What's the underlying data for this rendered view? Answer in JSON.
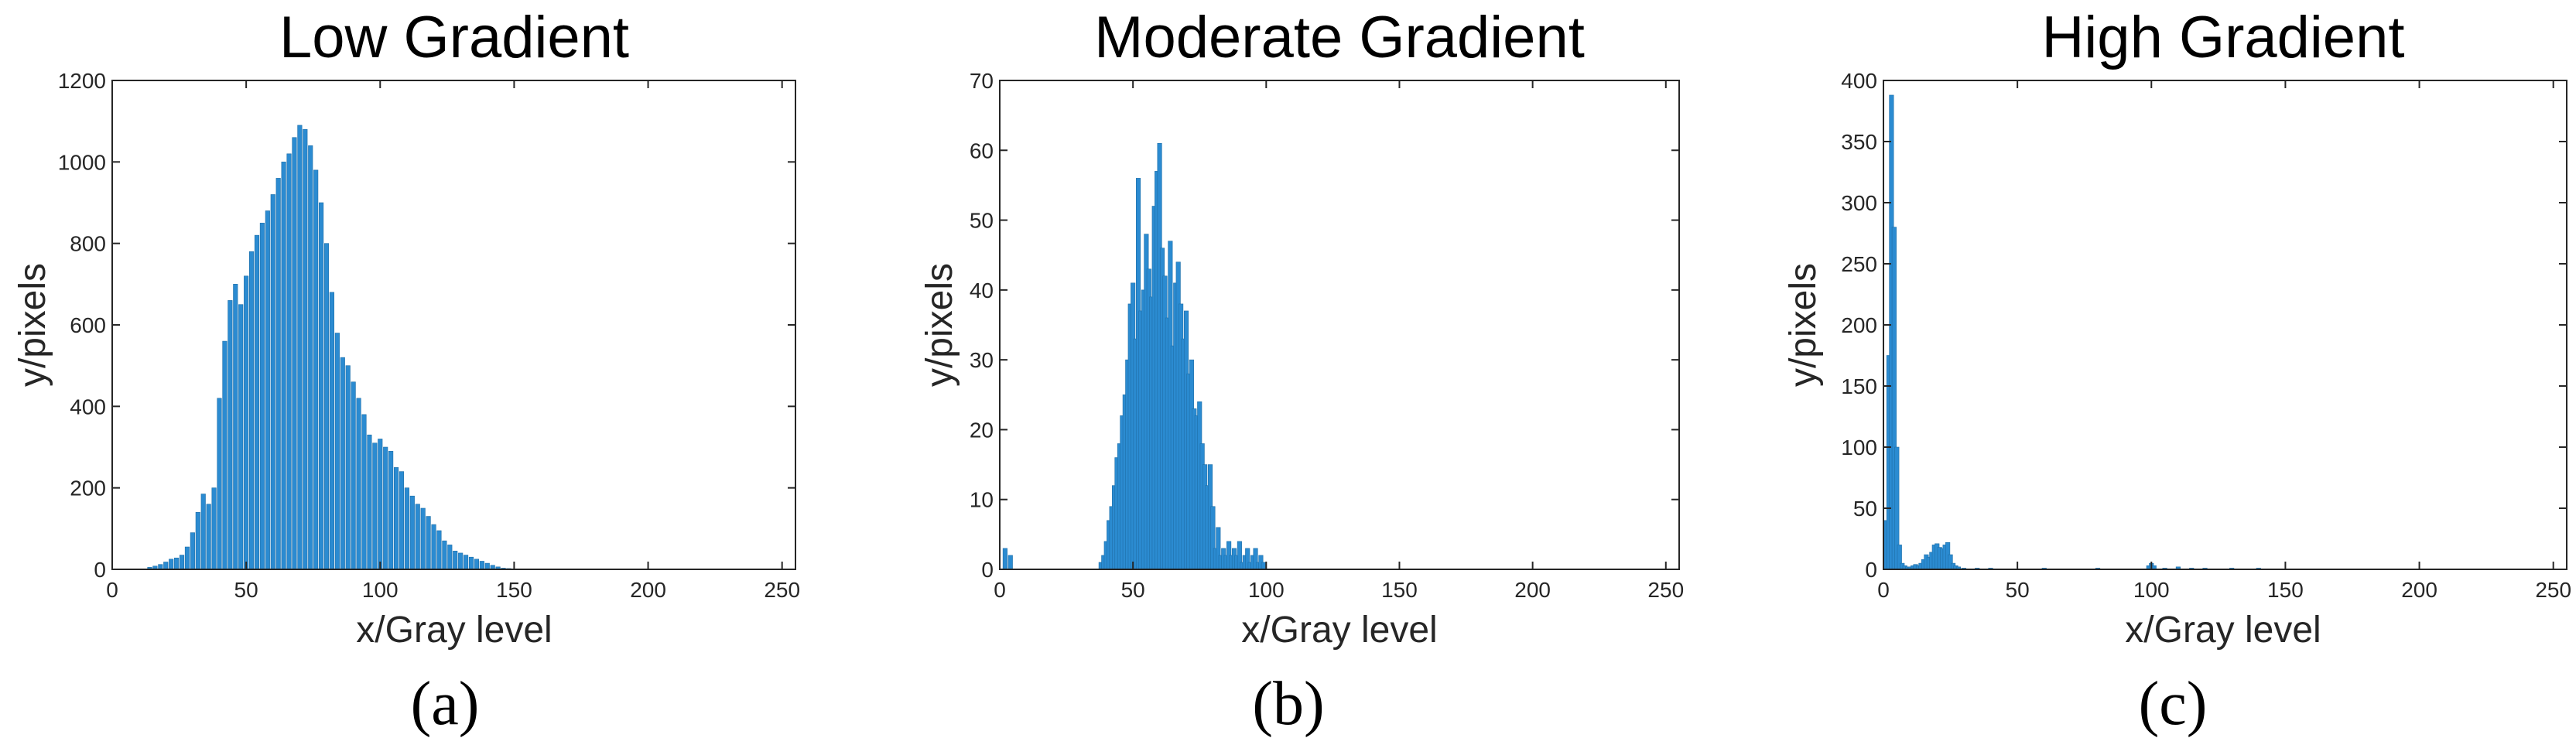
{
  "chart_data": [
    {
      "type": "bar",
      "title": "Low Gradient",
      "xlabel": "x/Gray level",
      "ylabel": "y/pixels",
      "caption": "(a)",
      "xlim": [
        0,
        255
      ],
      "ylim": [
        0,
        1200
      ],
      "xticks": [
        0,
        50,
        100,
        150,
        200,
        250
      ],
      "yticks": [
        0,
        200,
        400,
        600,
        800,
        1000,
        1200
      ],
      "bar_color": "#2b8bd1",
      "x": [
        14,
        16,
        18,
        20,
        22,
        24,
        26,
        28,
        30,
        32,
        34,
        36,
        38,
        40,
        42,
        44,
        46,
        48,
        50,
        52,
        54,
        56,
        58,
        60,
        62,
        64,
        66,
        68,
        70,
        72,
        74,
        76,
        78,
        80,
        82,
        84,
        86,
        88,
        90,
        92,
        94,
        96,
        98,
        100,
        102,
        104,
        106,
        108,
        110,
        112,
        114,
        116,
        118,
        120,
        122,
        124,
        126,
        128,
        130,
        132,
        134,
        136,
        138,
        140,
        142,
        144,
        146,
        148,
        150
      ],
      "values": [
        5,
        8,
        12,
        18,
        25,
        28,
        35,
        55,
        90,
        140,
        185,
        160,
        200,
        420,
        560,
        660,
        700,
        650,
        720,
        780,
        820,
        850,
        880,
        920,
        960,
        1000,
        1020,
        1060,
        1090,
        1080,
        1040,
        980,
        900,
        800,
        680,
        580,
        520,
        500,
        460,
        420,
        380,
        330,
        310,
        320,
        300,
        290,
        250,
        240,
        200,
        180,
        160,
        150,
        130,
        110,
        95,
        70,
        60,
        45,
        40,
        35,
        30,
        25,
        20,
        15,
        10,
        6,
        3,
        2,
        1
      ]
    },
    {
      "type": "bar",
      "title": "Moderate Gradient",
      "xlabel": "x/Gray level",
      "ylabel": "y/pixels",
      "caption": "(b)",
      "xlim": [
        0,
        255
      ],
      "ylim": [
        0,
        70
      ],
      "xticks": [
        0,
        50,
        100,
        150,
        200,
        250
      ],
      "yticks": [
        0,
        10,
        20,
        30,
        40,
        50,
        60,
        70
      ],
      "bar_color": "#2b8bd1",
      "x": [
        2,
        4,
        38,
        39,
        40,
        41,
        42,
        43,
        44,
        45,
        46,
        47,
        48,
        49,
        50,
        51,
        52,
        53,
        54,
        55,
        56,
        57,
        58,
        59,
        60,
        61,
        62,
        63,
        64,
        65,
        66,
        67,
        68,
        69,
        70,
        71,
        72,
        73,
        74,
        75,
        76,
        77,
        78,
        79,
        80,
        81,
        82,
        83,
        84,
        85,
        86,
        87,
        88,
        89,
        90,
        91,
        92,
        93,
        94,
        95,
        96,
        97,
        98,
        99
      ],
      "values": [
        3,
        2,
        1,
        2,
        4,
        7,
        9,
        12,
        16,
        18,
        22,
        25,
        30,
        38,
        41,
        33,
        56,
        37,
        40,
        48,
        43,
        39,
        52,
        57,
        61,
        46,
        42,
        36,
        47,
        32,
        41,
        44,
        38,
        33,
        37,
        28,
        30,
        23,
        22,
        24,
        18,
        15,
        12,
        15,
        9,
        3,
        6,
        2,
        3,
        2,
        4,
        2,
        3,
        2,
        4,
        1,
        2,
        3,
        1,
        2,
        3,
        1,
        2,
        1
      ]
    },
    {
      "type": "bar",
      "title": "High Gradient",
      "xlabel": "x/Gray level",
      "ylabel": "y/pixels",
      "caption": "(c)",
      "xlim": [
        0,
        255
      ],
      "ylim": [
        0,
        400
      ],
      "xticks": [
        0,
        50,
        100,
        150,
        200,
        250
      ],
      "yticks": [
        0,
        50,
        100,
        150,
        200,
        250,
        300,
        350,
        400
      ],
      "bar_color": "#2b8bd1",
      "x": [
        1,
        2,
        3,
        4,
        5,
        6,
        7,
        8,
        9,
        10,
        11,
        12,
        13,
        14,
        15,
        16,
        17,
        18,
        19,
        20,
        21,
        22,
        23,
        24,
        25,
        26,
        27,
        28,
        30,
        35,
        40,
        60,
        80,
        99,
        100,
        101,
        105,
        110,
        115,
        120,
        130,
        140
      ],
      "values": [
        40,
        175,
        388,
        280,
        100,
        20,
        5,
        3,
        2,
        2,
        3,
        4,
        3,
        5,
        8,
        12,
        10,
        14,
        20,
        21,
        18,
        17,
        20,
        22,
        12,
        5,
        3,
        2,
        1,
        1,
        1,
        1,
        1,
        3,
        5,
        3,
        1,
        2,
        1,
        1,
        1,
        1
      ]
    }
  ]
}
